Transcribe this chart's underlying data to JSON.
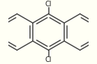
{
  "bg_color": "#fffff5",
  "bond_color": "#444444",
  "text_color": "#222222",
  "bond_width": 1.1,
  "figsize": [
    1.39,
    0.92
  ],
  "dpi": 100,
  "cl_font_size": 7.0,
  "scale": 0.27,
  "ox": 0.0,
  "oy": 0.0
}
